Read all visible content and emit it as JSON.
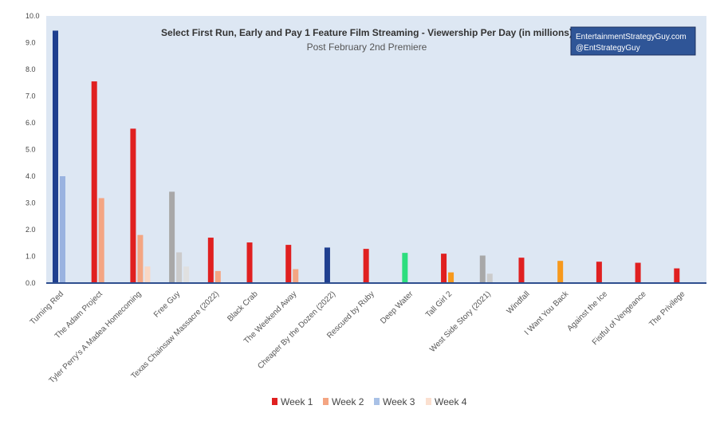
{
  "chart_data": {
    "type": "bar",
    "title": "Select First Run, Early and Pay 1 Feature Film Streaming - Viewership Per Day (in millions)",
    "subtitle": "Post February 2nd Premiere",
    "watermark": [
      "EntertainmentStrategyGuy.com",
      "@EntStrategyGuy"
    ],
    "ylim": [
      0,
      10
    ],
    "yticks": [
      "0.0",
      "1.0",
      "2.0",
      "3.0",
      "4.0",
      "5.0",
      "6.0",
      "7.0",
      "8.0",
      "9.0",
      "10.0"
    ],
    "grid": false,
    "legend_position": "bottom",
    "categories": [
      "Turning Red",
      "The Adam Project",
      "Tyler Perry's A Madea Homecoming",
      "Free Guy",
      "Texas Chainsaw Massacre (2022)",
      "Black Crab",
      "The Weekend Away",
      "Cheaper By the Dozen (2022)",
      "Rescued by Ruby",
      "Deep Water",
      "Tall Girl 2",
      "West Side Story (2021)",
      "Windfall",
      "I Want You Back",
      "Against the Ice",
      "Fistful of Vengeance",
      "The Privilege"
    ],
    "series": [
      {
        "name": "Week 1",
        "legend_color": "#e02020",
        "values": [
          9.45,
          7.55,
          5.78,
          3.42,
          1.7,
          1.52,
          1.43,
          1.33,
          1.28,
          1.13,
          1.1,
          1.03,
          0.95,
          0.83,
          0.8,
          0.76,
          0.55
        ],
        "colors": [
          "#1f3f8f",
          "#e02020",
          "#e02020",
          "#a8a8a8",
          "#e02020",
          "#e02020",
          "#e02020",
          "#1f3f8f",
          "#e02020",
          "#2dde7e",
          "#e02020",
          "#a8a8a8",
          "#e02020",
          "#f7991c",
          "#e02020",
          "#e02020",
          "#e02020"
        ]
      },
      {
        "name": "Week 2",
        "legend_color": "#f4a582",
        "values": [
          4.0,
          3.18,
          1.8,
          1.15,
          0.45,
          null,
          0.52,
          null,
          null,
          null,
          0.4,
          0.35,
          null,
          null,
          null,
          null,
          null
        ],
        "colors": [
          "#9ab3e0",
          "#f4a582",
          "#f4a582",
          "#cbcbcb",
          "#f4a582",
          null,
          "#f4a582",
          null,
          null,
          null,
          "#f7991c",
          "#cbcbcb",
          null,
          null,
          null,
          null,
          null
        ]
      },
      {
        "name": "Week 3",
        "legend_color": "#a9c1e6",
        "values": [
          null,
          null,
          0.62,
          0.62,
          null,
          null,
          null,
          null,
          null,
          null,
          null,
          null,
          null,
          null,
          null,
          null,
          null
        ],
        "colors": [
          null,
          null,
          "#f9d7c4",
          "#e0e0e0",
          null,
          null,
          null,
          null,
          null,
          null,
          null,
          null,
          null,
          null,
          null,
          null,
          null
        ]
      },
      {
        "name": "Week 4",
        "legend_color": "#fbe0d0",
        "values": [
          null,
          null,
          null,
          null,
          null,
          null,
          null,
          null,
          null,
          null,
          null,
          null,
          null,
          null,
          null,
          null,
          null
        ],
        "colors": []
      }
    ],
    "plot_background": "#dde7f3",
    "axis_color": "#2f4f8f",
    "watermark_background": "#2f5597"
  }
}
